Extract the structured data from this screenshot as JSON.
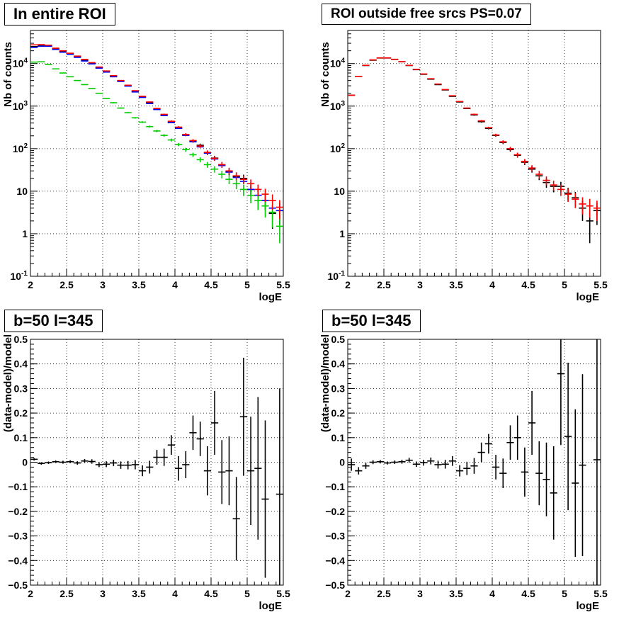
{
  "colors": {
    "data": "#000000",
    "model": "#ff0000",
    "component_blue": "#0000ff",
    "component_green": "#00cc00",
    "grid": "#000000"
  },
  "panels": {
    "top_left": {
      "title": "In entire ROI"
    },
    "top_right": {
      "title": "ROI outside free srcs PS=0.07"
    },
    "bottom_left": {
      "title": "b=50 l=345"
    },
    "bottom_right": {
      "title": "b=50 l=345"
    }
  },
  "chart_data": [
    {
      "type": "scatter",
      "title": "In entire ROI",
      "xlabel": "logE",
      "ylabel": "Nb of counts",
      "xlim": [
        2,
        5.5
      ],
      "ylim": [
        0.1,
        60000
      ],
      "ylog": true,
      "grid": true,
      "x_ticks": [
        "2",
        "2.5",
        "3",
        "3.5",
        "4",
        "4.5",
        "5",
        "5.5"
      ],
      "y_ticks": [
        "10^-1",
        "1",
        "10",
        "10^2",
        "10^3",
        "10^4"
      ],
      "x": [
        2.05,
        2.15,
        2.25,
        2.35,
        2.45,
        2.55,
        2.65,
        2.75,
        2.85,
        2.95,
        3.05,
        3.15,
        3.25,
        3.35,
        3.45,
        3.55,
        3.65,
        3.75,
        3.85,
        3.95,
        4.05,
        4.15,
        4.25,
        4.35,
        4.45,
        4.55,
        4.65,
        4.75,
        4.85,
        4.95,
        5.05,
        5.15,
        5.25,
        5.35,
        5.45
      ],
      "series": [
        {
          "color": "#000000",
          "y": [
            25000,
            26000,
            26000,
            22000,
            19000,
            17000,
            14500,
            12000,
            10000,
            8000,
            6500,
            5000,
            3900,
            3000,
            2200,
            1650,
            1200,
            850,
            620,
            420,
            310,
            210,
            150,
            120,
            80,
            60,
            42,
            29,
            22,
            20,
            11,
            8,
            6,
            3,
            3.5
          ],
          "err": [
            160,
            160,
            160,
            150,
            140,
            130,
            120,
            110,
            100,
            90,
            80,
            70,
            62,
            55,
            47,
            40,
            35,
            29,
            25,
            20,
            18,
            14,
            12,
            11,
            9,
            8,
            6.5,
            5.4,
            4.7,
            4.5,
            3.3,
            2.8,
            2.4,
            1.7,
            1.9
          ]
        },
        {
          "color": "#0000ff",
          "y": [
            24000,
            25500,
            25500,
            21500,
            18500,
            16500,
            14000,
            11500,
            9800,
            7800,
            6300,
            4900,
            3800,
            2950,
            2150,
            1600,
            1150,
            830,
            600,
            410,
            300,
            205,
            145,
            110,
            78,
            57,
            40,
            28,
            21,
            17,
            11,
            8,
            6,
            4,
            3.5
          ],
          "err": []
        },
        {
          "color": "#00cc00",
          "y": [
            10800,
            11000,
            9500,
            7500,
            6000,
            4900,
            4000,
            3200,
            2600,
            2000,
            1500,
            1200,
            900,
            700,
            530,
            420,
            330,
            260,
            205,
            160,
            125,
            95,
            72,
            55,
            42,
            33,
            25,
            19,
            15,
            11,
            8,
            6,
            4.5,
            3.2,
            1.5
          ],
          "err": [
            104,
            105,
            97,
            87,
            77,
            70,
            63,
            57,
            51,
            45,
            39,
            35,
            30,
            26,
            23,
            20,
            18,
            16,
            14,
            13,
            11,
            9.7,
            8.5,
            7.4,
            6.5,
            5.7,
            5,
            4.4,
            3.9,
            3.3,
            2.8,
            2.4,
            2.1,
            1.8,
            0.9
          ]
        },
        {
          "color": "#ff0000",
          "y": [
            27500,
            28000,
            27000,
            23000,
            20000,
            17500,
            15000,
            12500,
            10500,
            8300,
            6700,
            5200,
            4000,
            3100,
            2300,
            1700,
            1250,
            880,
            640,
            440,
            320,
            215,
            155,
            115,
            82,
            59,
            42,
            30,
            23,
            19,
            15,
            11,
            8.5,
            6,
            4.2
          ],
          "err": [
            166,
            167,
            164,
            152,
            141,
            132,
            122,
            112,
            102,
            91,
            82,
            72,
            63,
            56,
            48,
            41,
            35,
            30,
            25,
            21,
            18,
            15,
            12,
            11,
            9,
            7.7,
            6.5,
            5.5,
            4.8,
            4.4,
            3.9,
            3.3,
            2.9,
            2.4,
            2
          ]
        }
      ]
    },
    {
      "type": "scatter",
      "title": "ROI outside free srcs PS=0.07",
      "xlabel": "logE",
      "ylabel": "Nb of counts",
      "xlim": [
        2,
        5.5
      ],
      "ylim": [
        0.1,
        60000
      ],
      "ylog": true,
      "grid": true,
      "x_ticks": [
        "2",
        "2.5",
        "3",
        "3.5",
        "4",
        "4.5",
        "5",
        "5.5"
      ],
      "y_ticks": [
        "10^-1",
        "1",
        "10",
        "10^2",
        "10^3",
        "10^4"
      ],
      "x": [
        2.05,
        2.15,
        2.25,
        2.35,
        2.45,
        2.55,
        2.65,
        2.75,
        2.85,
        2.95,
        3.05,
        3.15,
        3.25,
        3.35,
        3.45,
        3.55,
        3.65,
        3.75,
        3.85,
        3.95,
        4.05,
        4.15,
        4.25,
        4.35,
        4.45,
        4.55,
        4.65,
        4.75,
        4.85,
        4.95,
        5.05,
        5.15,
        5.25,
        5.35,
        5.45
      ],
      "series": [
        {
          "color": "#000000",
          "y": [
            1800,
            5000,
            9000,
            12000,
            13500,
            13500,
            12500,
            11000,
            9000,
            7200,
            5600,
            4300,
            3200,
            2400,
            1700,
            1250,
            880,
            620,
            430,
            300,
            205,
            140,
            95,
            70,
            48,
            33,
            23,
            16,
            13,
            13,
            9,
            7,
            4,
            2,
            3.5
          ],
          "err": [
            42,
            71,
            95,
            110,
            116,
            116,
            112,
            105,
            95,
            85,
            75,
            66,
            57,
            49,
            41,
            35,
            30,
            25,
            21,
            17,
            14,
            12,
            9.7,
            8.4,
            6.9,
            5.7,
            4.8,
            4,
            3.6,
            3.6,
            3,
            2.6,
            2,
            1.4,
            1.9
          ]
        },
        {
          "color": "#ff0000",
          "y": [
            1800,
            5000,
            9100,
            12200,
            13600,
            13600,
            12600,
            11100,
            9100,
            7300,
            5700,
            4400,
            3300,
            2450,
            1750,
            1280,
            900,
            640,
            450,
            310,
            210,
            145,
            100,
            72,
            50,
            35,
            25,
            18,
            14,
            11,
            8.5,
            6.5,
            5,
            4.5,
            4
          ],
          "err": [
            42,
            71,
            95,
            110,
            117,
            117,
            112,
            105,
            95,
            85,
            75,
            66,
            57,
            49,
            42,
            36,
            30,
            25,
            21,
            18,
            14,
            12,
            10,
            8.5,
            7,
            5.9,
            5,
            4.2,
            3.7,
            3.3,
            2.9,
            2.5,
            2.2,
            2.1,
            2
          ]
        }
      ]
    },
    {
      "type": "scatter",
      "title": "b=50 l=345",
      "xlabel": "logE",
      "ylabel": "(data-model)/model",
      "xlim": [
        2,
        5.5
      ],
      "ylim": [
        -0.5,
        0.5
      ],
      "grid": true,
      "x_ticks": [
        "2",
        "2.5",
        "3",
        "3.5",
        "4",
        "4.5",
        "5",
        "5.5"
      ],
      "y_ticks": [
        "-0.5",
        "-0.4",
        "-0.3",
        "-0.2",
        "-0.1",
        "0",
        "0.1",
        "0.2",
        "0.3",
        "0.4",
        "0.5"
      ],
      "x": [
        2.05,
        2.15,
        2.25,
        2.35,
        2.45,
        2.55,
        2.65,
        2.75,
        2.85,
        2.95,
        3.05,
        3.15,
        3.25,
        3.35,
        3.45,
        3.55,
        3.65,
        3.75,
        3.85,
        3.95,
        4.05,
        4.15,
        4.25,
        4.35,
        4.45,
        4.55,
        4.65,
        4.75,
        4.85,
        4.95,
        5.05,
        5.15,
        5.25,
        5.35,
        5.45
      ],
      "series": [
        {
          "color": "#000000",
          "y": [
            0.012,
            -0.005,
            -0.002,
            0.002,
            0,
            0.002,
            -0.003,
            0.005,
            0.003,
            -0.01,
            -0.008,
            -0.003,
            -0.012,
            -0.012,
            -0.01,
            -0.035,
            -0.02,
            0.02,
            0.02,
            0.07,
            -0.025,
            -0.01,
            0.12,
            0.095,
            -0.035,
            0.16,
            -0.04,
            -0.035,
            -0.23,
            0.185,
            -0.035,
            -0.025,
            -0.15,
            -0.13
          ],
          "x_override": [
            2.05,
            2.15,
            2.25,
            2.35,
            2.45,
            2.55,
            2.65,
            2.75,
            2.85,
            2.95,
            3.05,
            3.15,
            3.25,
            3.35,
            3.45,
            3.55,
            3.65,
            3.75,
            3.85,
            3.95,
            4.05,
            4.15,
            4.25,
            4.35,
            4.45,
            4.55,
            4.65,
            4.75,
            4.85,
            4.95,
            5.05,
            5.15,
            5.25,
            5.45
          ],
          "err": [
            0.005,
            0.005,
            0.005,
            0.005,
            0.006,
            0.006,
            0.007,
            0.008,
            0.009,
            0.01,
            0.012,
            0.013,
            0.015,
            0.017,
            0.019,
            0.022,
            0.026,
            0.03,
            0.035,
            0.04,
            0.05,
            0.055,
            0.07,
            0.07,
            0.1,
            0.13,
            0.13,
            0.14,
            0.17,
            0.24,
            0.22,
            0.29,
            0.32,
            0.43
          ]
        }
      ]
    },
    {
      "type": "scatter",
      "title": "b=50 l=345",
      "xlabel": "logE",
      "ylabel": "(data-model)/model",
      "xlim": [
        2,
        5.5
      ],
      "ylim": [
        -0.5,
        0.5
      ],
      "grid": true,
      "x_ticks": [
        "2",
        "2.5",
        "3",
        "3.5",
        "4",
        "4.5",
        "5",
        "5.5"
      ],
      "y_ticks": [
        "-0.5",
        "-0.4",
        "-0.3",
        "-0.2",
        "-0.1",
        "0",
        "0.1",
        "0.2",
        "0.3",
        "0.4",
        "0.5"
      ],
      "x": [
        2.05,
        2.15,
        2.25,
        2.35,
        2.45,
        2.55,
        2.65,
        2.75,
        2.85,
        2.95,
        3.05,
        3.15,
        3.25,
        3.35,
        3.45,
        3.55,
        3.65,
        3.75,
        3.85,
        3.95,
        4.05,
        4.15,
        4.25,
        4.35,
        4.45,
        4.55,
        4.65,
        4.75,
        4.85,
        4.95,
        5.05,
        5.15,
        5.25,
        5.45
      ],
      "series": [
        {
          "color": "#000000",
          "y": [
            -0.01,
            -0.035,
            -0.015,
            0,
            0.002,
            -0.003,
            0,
            0.002,
            0.008,
            -0.008,
            -0.002,
            0.005,
            -0.01,
            -0.008,
            0.005,
            -0.035,
            -0.025,
            -0.015,
            0.04,
            0.075,
            -0.02,
            -0.045,
            0.08,
            0.1,
            -0.04,
            0.16,
            -0.045,
            -0.07,
            -0.125,
            0.36,
            0.105,
            -0.085,
            -0.012,
            0.01
          ],
          "err": [
            0.025,
            0.015,
            0.012,
            0.008,
            0.007,
            0.006,
            0.007,
            0.008,
            0.01,
            0.011,
            0.012,
            0.014,
            0.016,
            0.018,
            0.02,
            0.023,
            0.027,
            0.032,
            0.04,
            0.04,
            0.05,
            0.06,
            0.07,
            0.09,
            0.1,
            0.13,
            0.13,
            0.15,
            0.19,
            0.29,
            0.3,
            0.3,
            0.37,
            0.6
          ]
        }
      ]
    }
  ]
}
